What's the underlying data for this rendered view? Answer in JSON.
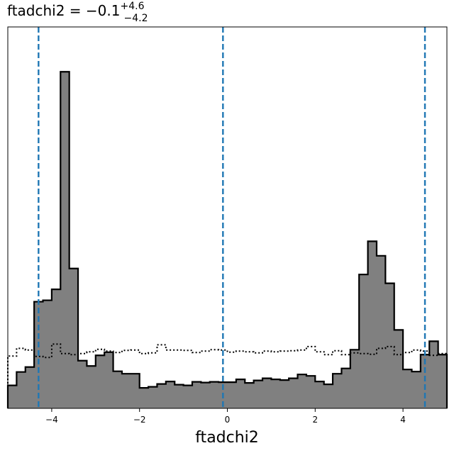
{
  "chart_data": {
    "type": "histogram",
    "title": {
      "prefix": "ftadchi2 = ",
      "median": "−0.1",
      "upper": "+4.6",
      "lower": "−4.2"
    },
    "xlabel": "ftadchi2",
    "ylabel": "",
    "xlim": [
      -5,
      5
    ],
    "ylim": [
      0,
      1.08
    ],
    "xticks": [
      -4,
      -2,
      0,
      2,
      4
    ],
    "xtick_labels": [
      "−4",
      "−2",
      "0",
      "2",
      "4"
    ],
    "show_yticks": false,
    "grid": false,
    "bin_edges": [
      -5.0,
      -4.8,
      -4.6,
      -4.4,
      -4.2,
      -4.0,
      -3.8,
      -3.6,
      -3.4,
      -3.2,
      -3.0,
      -2.8,
      -2.6,
      -2.4,
      -2.2,
      -2.0,
      -1.8,
      -1.6,
      -1.4,
      -1.2,
      -1.0,
      -0.8,
      -0.6,
      -0.4,
      -0.2,
      0.0,
      0.2,
      0.4,
      0.6,
      0.8,
      1.0,
      1.2,
      1.4,
      1.6,
      1.8,
      2.0,
      2.2,
      2.4,
      2.6,
      2.8,
      3.0,
      3.2,
      3.4,
      3.6,
      3.8,
      4.0,
      4.2,
      4.4,
      4.6,
      4.8,
      5.0
    ],
    "posterior_counts": [
      0.065,
      0.103,
      0.117,
      0.302,
      0.306,
      0.337,
      0.953,
      0.396,
      0.135,
      0.12,
      0.15,
      0.159,
      0.105,
      0.098,
      0.098,
      0.058,
      0.061,
      0.069,
      0.076,
      0.067,
      0.065,
      0.075,
      0.073,
      0.075,
      0.074,
      0.074,
      0.082,
      0.072,
      0.079,
      0.085,
      0.082,
      0.08,
      0.085,
      0.096,
      0.092,
      0.076,
      0.068,
      0.098,
      0.113,
      0.166,
      0.379,
      0.473,
      0.432,
      0.354,
      0.222,
      0.11,
      0.104,
      0.152,
      0.19,
      0.152
    ],
    "prior_counts": [
      0.148,
      0.17,
      0.165,
      0.147,
      0.144,
      0.182,
      0.155,
      0.152,
      0.155,
      0.16,
      0.167,
      0.162,
      0.158,
      0.164,
      0.165,
      0.155,
      0.157,
      0.18,
      0.165,
      0.165,
      0.164,
      0.158,
      0.162,
      0.166,
      0.165,
      0.159,
      0.162,
      0.16,
      0.157,
      0.162,
      0.16,
      0.162,
      0.163,
      0.165,
      0.175,
      0.16,
      0.152,
      0.163,
      0.152,
      0.157,
      0.155,
      0.153,
      0.17,
      0.175,
      0.152,
      0.158,
      0.165,
      0.162,
      0.15,
      0.155
    ],
    "quantile_lines": [
      -4.3,
      -0.1,
      4.5
    ],
    "colors": {
      "posterior_fill": "#808080",
      "posterior_edge": "#000000",
      "prior_line": "#000000",
      "quantile_line": "#1f77b4"
    }
  }
}
